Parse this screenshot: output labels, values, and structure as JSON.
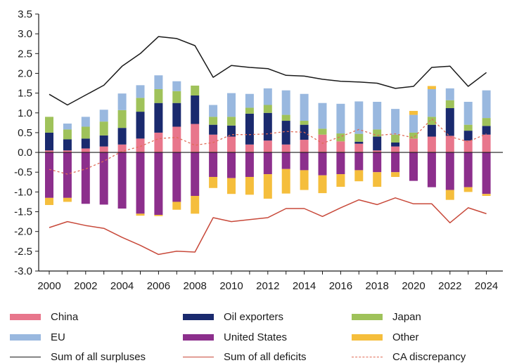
{
  "chart_data": {
    "type": "bar",
    "stacked": true,
    "x": [
      "2000",
      "2001",
      "2002",
      "2003",
      "2004",
      "2005",
      "2006",
      "2007",
      "2008",
      "2009",
      "2010",
      "2011",
      "2012",
      "2013",
      "2014",
      "2015",
      "2016",
      "2017",
      "2018",
      "2019",
      "2020",
      "2021",
      "2022",
      "2023",
      "2024"
    ],
    "x_tick_labels": [
      "2000",
      "2002",
      "2004",
      "2006",
      "2008",
      "2010",
      "2012",
      "2014",
      "2016",
      "2018",
      "2020",
      "2022",
      "2024"
    ],
    "ylim": [
      -3.0,
      3.5
    ],
    "y_ticks": [
      "3.5",
      "3.0",
      "2.5",
      "2.0",
      "1.5",
      "1.0",
      "0.5",
      "0.0",
      "-0.5",
      "-1.0",
      "-1.5",
      "-2.0",
      "-2.5",
      "-3.0"
    ],
    "y_tick_values": [
      3.5,
      3.0,
      2.5,
      2.0,
      1.5,
      1.0,
      0.5,
      0.0,
      -0.5,
      -1.0,
      -1.5,
      -2.0,
      -2.5,
      -3.0
    ],
    "grid": false,
    "legend_position": "bottom",
    "series": [
      {
        "name": "China",
        "color": "#e8768c",
        "kind": "bar",
        "values": [
          0.05,
          0.05,
          0.1,
          0.15,
          0.2,
          0.35,
          0.5,
          0.65,
          0.72,
          0.45,
          0.4,
          0.2,
          0.3,
          0.2,
          0.32,
          0.45,
          0.28,
          0.22,
          0.05,
          0.15,
          0.35,
          0.4,
          0.42,
          0.3,
          0.45
        ]
      },
      {
        "name": "Oil exporters",
        "color": "#1a2a6e",
        "kind": "bar",
        "values": [
          0.45,
          0.28,
          0.25,
          0.28,
          0.42,
          0.68,
          0.75,
          0.6,
          0.72,
          0.25,
          0.28,
          0.78,
          0.7,
          0.6,
          0.38,
          0.0,
          0.0,
          0.05,
          0.35,
          0.1,
          0.0,
          0.3,
          0.7,
          0.25,
          0.22
        ]
      },
      {
        "name": "Japan",
        "color": "#9fc25a",
        "kind": "bar",
        "values": [
          0.4,
          0.25,
          0.3,
          0.35,
          0.45,
          0.35,
          0.35,
          0.3,
          0.25,
          0.2,
          0.22,
          0.15,
          0.2,
          0.15,
          0.1,
          0.15,
          0.2,
          0.2,
          0.18,
          0.2,
          0.15,
          0.2,
          0.2,
          0.15,
          0.2
        ]
      },
      {
        "name": "EU",
        "color": "#99b8df",
        "kind": "bar",
        "values": [
          0.0,
          0.15,
          0.25,
          0.3,
          0.42,
          0.32,
          0.35,
          0.25,
          0.0,
          0.3,
          0.6,
          0.35,
          0.42,
          0.62,
          0.68,
          0.65,
          0.75,
          0.82,
          0.7,
          0.65,
          0.45,
          0.7,
          0.3,
          0.58,
          0.7
        ]
      },
      {
        "name": "United States",
        "color": "#8c2f8c",
        "kind": "bar",
        "values": [
          -1.15,
          -1.15,
          -1.3,
          -1.32,
          -1.42,
          -1.55,
          -1.58,
          -1.25,
          -1.1,
          -0.62,
          -0.65,
          -0.62,
          -0.55,
          -0.42,
          -0.45,
          -0.58,
          -0.55,
          -0.45,
          -0.5,
          -0.5,
          -0.72,
          -0.88,
          -0.95,
          -0.88,
          -1.05
        ]
      },
      {
        "name": "Other",
        "color": "#f5be3c",
        "kind": "bar",
        "values": [
          -0.18,
          -0.1,
          0.0,
          0.0,
          0.0,
          -0.05,
          -0.03,
          -0.2,
          -0.45,
          -0.28,
          -0.4,
          -0.45,
          -0.62,
          -0.62,
          -0.5,
          -0.45,
          -0.32,
          -0.28,
          -0.37,
          -0.12,
          0.1,
          0.08,
          -0.25,
          -0.12,
          -0.05
        ]
      },
      {
        "name": "Sum of all surpluses",
        "color": "#1a1a1a",
        "kind": "line",
        "dash": "solid",
        "values": [
          1.47,
          1.2,
          1.45,
          1.7,
          2.18,
          2.5,
          2.93,
          2.88,
          2.7,
          1.9,
          2.2,
          2.15,
          2.12,
          1.95,
          1.93,
          1.85,
          1.8,
          1.78,
          1.75,
          1.62,
          1.67,
          2.15,
          2.18,
          1.67,
          2.02
        ]
      },
      {
        "name": "Sum of all deficits",
        "color": "#c8493a",
        "kind": "line",
        "dash": "solid",
        "values": [
          -1.9,
          -1.75,
          -1.85,
          -1.92,
          -2.15,
          -2.35,
          -2.58,
          -2.5,
          -2.52,
          -1.65,
          -1.75,
          -1.7,
          -1.65,
          -1.42,
          -1.42,
          -1.62,
          -1.4,
          -1.2,
          -1.32,
          -1.15,
          -1.3,
          -1.3,
          -1.78,
          -1.4,
          -1.55
        ]
      },
      {
        "name": "CA discrepancy",
        "color": "#e06b56",
        "kind": "line",
        "dash": "dashed",
        "values": [
          -0.43,
          -0.55,
          -0.42,
          -0.22,
          0.03,
          0.15,
          0.35,
          0.38,
          0.18,
          0.25,
          0.45,
          0.45,
          0.47,
          0.53,
          0.51,
          0.23,
          0.4,
          0.58,
          0.43,
          0.47,
          0.37,
          0.85,
          0.4,
          0.27,
          0.47
        ]
      }
    ]
  }
}
